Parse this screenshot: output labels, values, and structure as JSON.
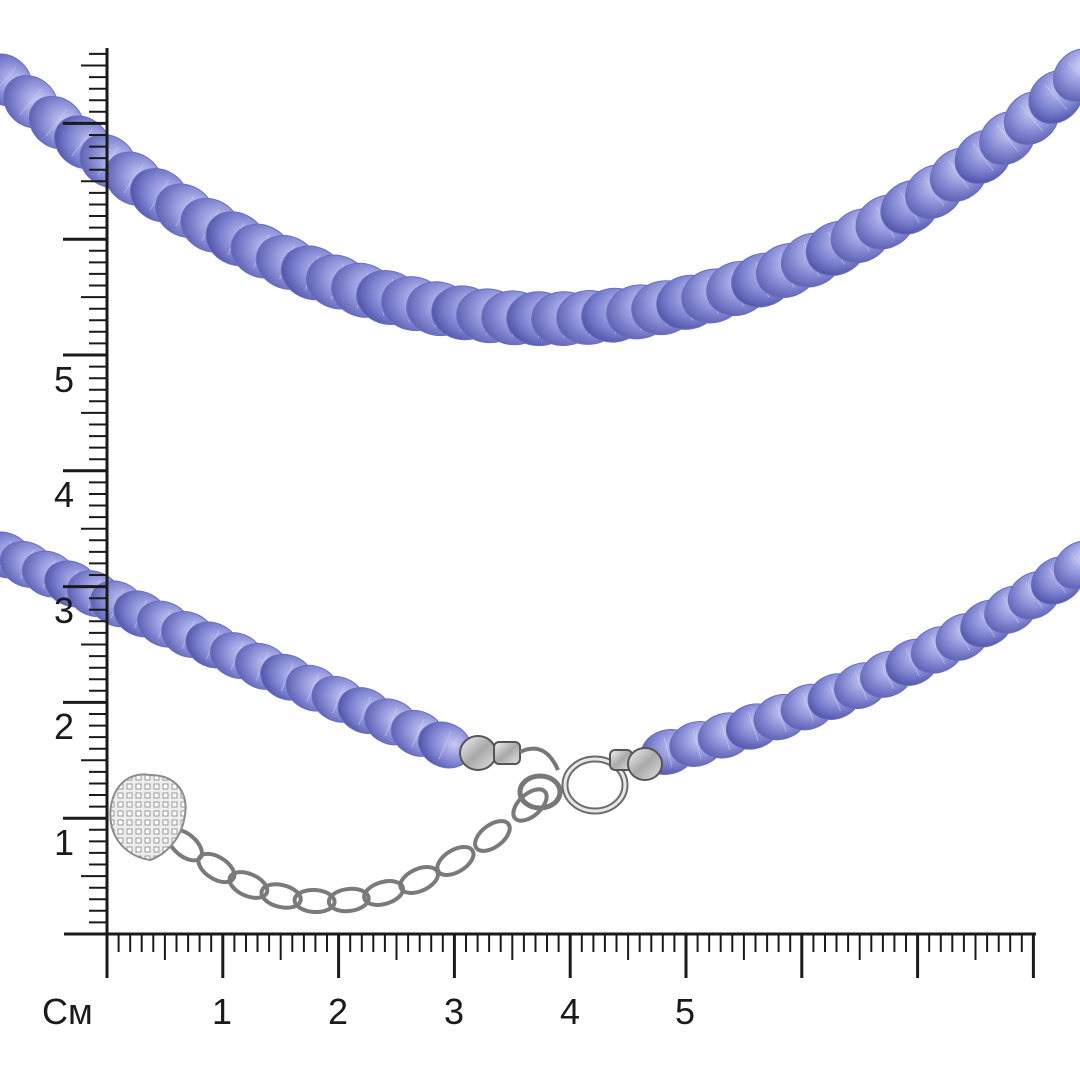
{
  "ruler": {
    "unit_label": "См",
    "x_labels": [
      "1",
      "2",
      "3",
      "4",
      "5"
    ],
    "y_labels": [
      "1",
      "2",
      "3",
      "4",
      "5"
    ]
  },
  "colors": {
    "bead_light": "#b9bdf0",
    "bead_mid": "#8a8fd8",
    "bead_dark": "#5b5fb3",
    "metal": "#c8c8c8",
    "ruler": "#1a1a1a"
  },
  "necklace": {
    "strands": [
      "upper-strand",
      "lower-left-strand",
      "lower-right-strand"
    ],
    "clasp": "spring-ring-clasp",
    "extender": "extender-chain",
    "charm": "heart-charm"
  }
}
